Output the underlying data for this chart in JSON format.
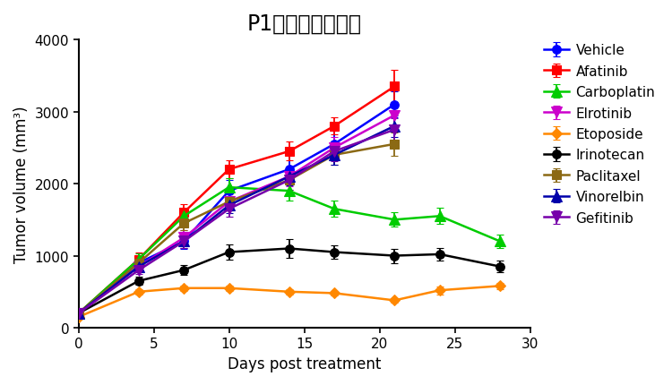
{
  "title": "P1代药效实验案例",
  "xlabel": "Days post treatment",
  "ylabel": "Tumor volume (mm³)",
  "xlim": [
    0,
    30
  ],
  "ylim": [
    0,
    4000
  ],
  "yticks": [
    0,
    1000,
    2000,
    3000,
    4000
  ],
  "xticks": [
    0,
    5,
    10,
    15,
    20,
    25,
    30
  ],
  "series": [
    {
      "name": "Vehicle",
      "color": "#0000FF",
      "marker": "o",
      "x": [
        0,
        4,
        7,
        10,
        14,
        17,
        21
      ],
      "y": [
        200,
        900,
        1200,
        1900,
        2200,
        2550,
        3100
      ],
      "yerr": [
        20,
        80,
        100,
        150,
        200,
        180,
        180
      ]
    },
    {
      "name": "Afatinib",
      "color": "#FF0000",
      "marker": "s",
      "x": [
        0,
        4,
        7,
        10,
        14,
        17,
        21
      ],
      "y": [
        200,
        950,
        1600,
        2200,
        2450,
        2800,
        3350
      ],
      "yerr": [
        20,
        90,
        120,
        130,
        130,
        120,
        230
      ]
    },
    {
      "name": "Carboplatin",
      "color": "#00CC00",
      "marker": "^",
      "x": [
        0,
        4,
        7,
        10,
        14,
        17,
        21,
        24,
        28
      ],
      "y": [
        200,
        950,
        1550,
        1950,
        1900,
        1650,
        1500,
        1550,
        1200
      ],
      "yerr": [
        20,
        80,
        100,
        120,
        130,
        110,
        100,
        110,
        90
      ]
    },
    {
      "name": "Elrotinib",
      "color": "#CC00CC",
      "marker": "v",
      "x": [
        0,
        4,
        7,
        10,
        14,
        17,
        21
      ],
      "y": [
        200,
        850,
        1250,
        1750,
        2100,
        2500,
        2950
      ],
      "yerr": [
        20,
        70,
        100,
        120,
        140,
        150,
        160
      ]
    },
    {
      "name": "Etoposide",
      "color": "#FF8800",
      "marker": "D",
      "x": [
        0,
        4,
        7,
        10,
        14,
        17,
        21,
        24,
        28
      ],
      "y": [
        150,
        500,
        550,
        550,
        500,
        480,
        380,
        520,
        580
      ],
      "yerr": [
        15,
        40,
        35,
        40,
        35,
        30,
        30,
        55,
        45
      ]
    },
    {
      "name": "Irinotecan",
      "color": "#000000",
      "marker": "o",
      "x": [
        0,
        4,
        7,
        10,
        14,
        17,
        21,
        24,
        28
      ],
      "y": [
        200,
        650,
        800,
        1050,
        1100,
        1050,
        1000,
        1020,
        850
      ],
      "yerr": [
        20,
        55,
        65,
        100,
        130,
        90,
        100,
        90,
        80
      ]
    },
    {
      "name": "Paclitaxel",
      "color": "#8B6914",
      "marker": "s",
      "x": [
        0,
        4,
        7,
        10,
        14,
        17,
        21
      ],
      "y": [
        200,
        900,
        1450,
        1750,
        2050,
        2400,
        2550
      ],
      "yerr": [
        20,
        75,
        100,
        120,
        130,
        140,
        160
      ]
    },
    {
      "name": "Vinorelbin",
      "color": "#0000AA",
      "marker": "^",
      "x": [
        0,
        4,
        7,
        10,
        14,
        17,
        21
      ],
      "y": [
        200,
        850,
        1200,
        1700,
        2100,
        2400,
        2800
      ],
      "yerr": [
        20,
        65,
        95,
        115,
        130,
        140,
        150
      ]
    },
    {
      "name": "Gefitinib",
      "color": "#7700AA",
      "marker": "v",
      "x": [
        0,
        4,
        7,
        10,
        14,
        17,
        21
      ],
      "y": [
        200,
        800,
        1200,
        1650,
        2050,
        2450,
        2750
      ],
      "yerr": [
        20,
        60,
        90,
        115,
        130,
        140,
        160
      ]
    }
  ],
  "background_color": "#FFFFFF",
  "title_fontsize": 17,
  "label_fontsize": 12,
  "tick_fontsize": 11,
  "legend_fontsize": 11
}
